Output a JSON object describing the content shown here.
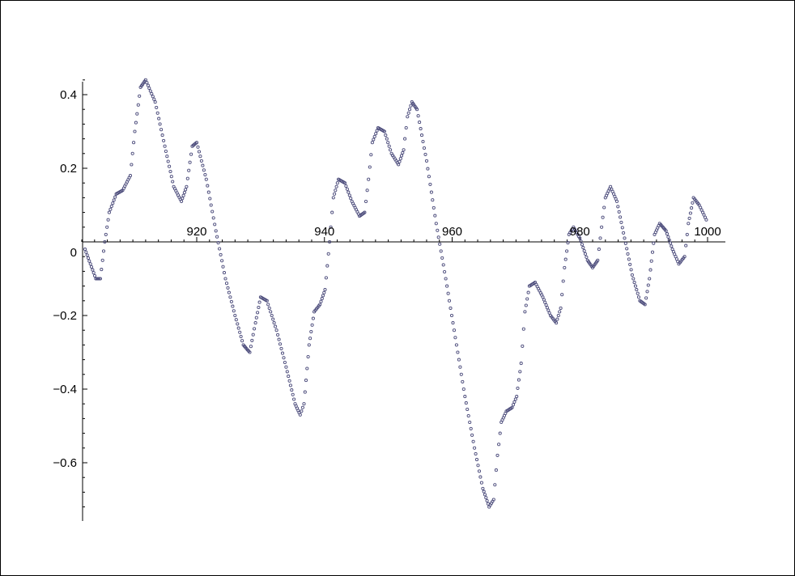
{
  "chart_data": {
    "type": "scatter",
    "title": "",
    "xlabel": "",
    "ylabel": "",
    "xlim": [
      900,
      1002
    ],
    "ylim": [
      -0.74,
      0.45
    ],
    "grid": false,
    "marker_color": "#4a4a7a",
    "x_ticks": [
      {
        "value": 920,
        "label": "920"
      },
      {
        "value": 940,
        "label": "940"
      },
      {
        "value": 960,
        "label": "960"
      },
      {
        "value": 980,
        "label": "980"
      },
      {
        "value": 1000,
        "label": "1000"
      }
    ],
    "y_ticks": [
      {
        "value": 0.4,
        "label": "0.4"
      },
      {
        "value": 0.2,
        "label": "0.2"
      },
      {
        "value": 0,
        "label": "0"
      },
      {
        "value": -0.2,
        "label": "−0.2"
      },
      {
        "value": -0.4,
        "label": "−0.4"
      },
      {
        "value": -0.6,
        "label": "−0.6"
      }
    ],
    "series": [
      {
        "points": [
          [
            902.5,
            -0.02
          ],
          [
            904.2,
            -0.1
          ],
          [
            904.9,
            -0.1
          ],
          [
            905.6,
            0.0
          ],
          [
            906.3,
            0.08
          ],
          [
            907.4,
            0.13
          ],
          [
            908.4,
            0.14
          ],
          [
            909.6,
            0.18
          ],
          [
            910.3,
            0.3
          ],
          [
            911.2,
            0.42
          ],
          [
            912.0,
            0.44
          ],
          [
            913.5,
            0.38
          ],
          [
            915.0,
            0.26
          ],
          [
            916.4,
            0.15
          ],
          [
            917.6,
            0.11
          ],
          [
            918.4,
            0.15
          ],
          [
            919.3,
            0.26
          ],
          [
            920.0,
            0.27
          ],
          [
            921.5,
            0.17
          ],
          [
            923.0,
            0.03
          ],
          [
            924.5,
            -0.1
          ],
          [
            926.0,
            -0.2
          ],
          [
            927.3,
            -0.28
          ],
          [
            928.3,
            -0.3
          ],
          [
            929.2,
            -0.22
          ],
          [
            930.0,
            -0.15
          ],
          [
            931.0,
            -0.16
          ],
          [
            932.5,
            -0.24
          ],
          [
            934.0,
            -0.34
          ],
          [
            935.4,
            -0.44
          ],
          [
            936.2,
            -0.47
          ],
          [
            936.8,
            -0.44
          ],
          [
            937.6,
            -0.28
          ],
          [
            938.4,
            -0.19
          ],
          [
            939.3,
            -0.17
          ],
          [
            940.1,
            -0.13
          ],
          [
            940.8,
            0.0
          ],
          [
            941.4,
            0.12
          ],
          [
            942.2,
            0.17
          ],
          [
            943.2,
            0.16
          ],
          [
            944.3,
            0.11
          ],
          [
            945.5,
            0.07
          ],
          [
            946.3,
            0.08
          ],
          [
            946.9,
            0.17
          ],
          [
            947.5,
            0.27
          ],
          [
            948.4,
            0.31
          ],
          [
            949.4,
            0.3
          ],
          [
            950.5,
            0.24
          ],
          [
            951.6,
            0.21
          ],
          [
            952.4,
            0.25
          ],
          [
            953.0,
            0.34
          ],
          [
            953.7,
            0.38
          ],
          [
            954.5,
            0.36
          ],
          [
            956.0,
            0.22
          ],
          [
            957.5,
            0.05
          ],
          [
            959.0,
            -0.1
          ],
          [
            960.5,
            -0.26
          ],
          [
            962.0,
            -0.42
          ],
          [
            963.5,
            -0.56
          ],
          [
            964.8,
            -0.67
          ],
          [
            965.8,
            -0.72
          ],
          [
            966.5,
            -0.7
          ],
          [
            967.1,
            -0.58
          ],
          [
            967.7,
            -0.49
          ],
          [
            968.5,
            -0.46
          ],
          [
            969.4,
            -0.45
          ],
          [
            970.1,
            -0.42
          ],
          [
            970.8,
            -0.33
          ],
          [
            971.4,
            -0.19
          ],
          [
            972.1,
            -0.12
          ],
          [
            973.0,
            -0.11
          ],
          [
            974.2,
            -0.15
          ],
          [
            975.4,
            -0.2
          ],
          [
            976.3,
            -0.22
          ],
          [
            977.0,
            -0.18
          ],
          [
            977.6,
            -0.07
          ],
          [
            978.3,
            0.02
          ],
          [
            979.0,
            0.04
          ],
          [
            980.0,
            0.01
          ],
          [
            981.2,
            -0.05
          ],
          [
            982.0,
            -0.07
          ],
          [
            982.8,
            -0.05
          ],
          [
            983.4,
            0.04
          ],
          [
            984.0,
            0.12
          ],
          [
            984.8,
            0.15
          ],
          [
            985.8,
            0.11
          ],
          [
            987.0,
            0.01
          ],
          [
            988.2,
            -0.09
          ],
          [
            989.4,
            -0.16
          ],
          [
            990.2,
            -0.17
          ],
          [
            990.9,
            -0.1
          ],
          [
            991.7,
            0.02
          ],
          [
            992.5,
            0.05
          ],
          [
            993.5,
            0.03
          ],
          [
            994.5,
            -0.02
          ],
          [
            995.5,
            -0.06
          ],
          [
            996.4,
            -0.04
          ],
          [
            997.0,
            0.05
          ],
          [
            997.8,
            0.12
          ],
          [
            998.7,
            0.1
          ],
          [
            999.8,
            0.06
          ]
        ]
      }
    ]
  }
}
